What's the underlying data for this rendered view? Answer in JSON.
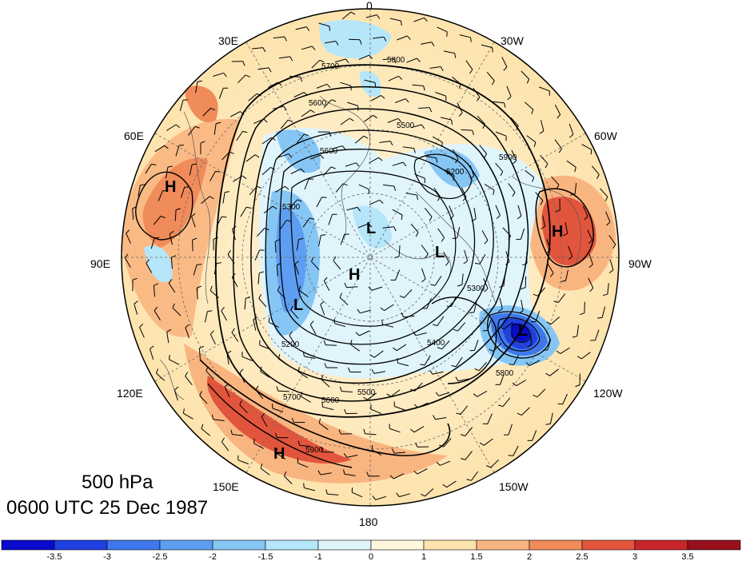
{
  "title": {
    "level": "500 hPa",
    "time": "0600 UTC 25 Dec 1987"
  },
  "longitude_labels": [
    {
      "key": "lon-0",
      "text": "0"
    },
    {
      "key": "lon-30w",
      "text": "30W"
    },
    {
      "key": "lon-60w",
      "text": "60W"
    },
    {
      "key": "lon-90w",
      "text": "90W"
    },
    {
      "key": "lon-120w",
      "text": "120W"
    },
    {
      "key": "lon-150w",
      "text": "150W"
    },
    {
      "key": "lon-180",
      "text": "180"
    },
    {
      "key": "lon-150e",
      "text": "150E"
    },
    {
      "key": "lon-120e",
      "text": "120E"
    },
    {
      "key": "lon-90e",
      "text": "90E"
    },
    {
      "key": "lon-60e",
      "text": "60E"
    },
    {
      "key": "lon-30e",
      "text": "30E"
    }
  ],
  "contour_labels": [
    "5800",
    "5700",
    "5600",
    "5500",
    "5400",
    "5300",
    "5200",
    "5900",
    "5600",
    "5800",
    "5300",
    "5200",
    "5600",
    "5700",
    "5900",
    "5500"
  ],
  "pressure_centers": [
    "H",
    "H",
    "H",
    "H",
    "L",
    "L",
    "L",
    "L"
  ],
  "colorbar": {
    "ticks": [
      "-3.5",
      "-3",
      "-2.5",
      "-2",
      "-1.5",
      "-1",
      "0",
      "1",
      "1.5",
      "2",
      "2.5",
      "3",
      "3.5"
    ],
    "colors": [
      "#0a0acc",
      "#1f3fe0",
      "#3f78ee",
      "#5e9ef2",
      "#86c6f5",
      "#b6e6fa",
      "#dff4fb",
      "#fef7de",
      "#fde3ad",
      "#f9b580",
      "#f08b5a",
      "#e2553d",
      "#c8252a",
      "#96101c"
    ]
  }
}
